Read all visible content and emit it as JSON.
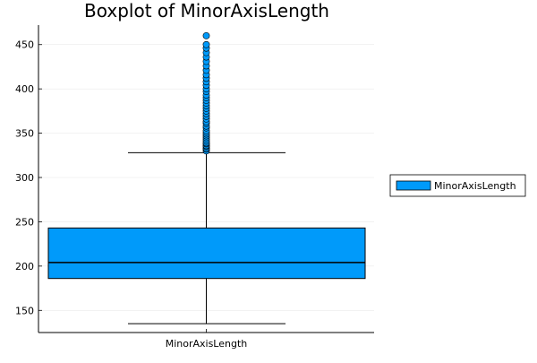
{
  "chart_data": {
    "type": "box",
    "title": "Boxplot of MinorAxisLength",
    "xlabel": "",
    "ylabel": "",
    "categories": [
      "MinorAxisLength"
    ],
    "ylim": [
      125,
      472
    ],
    "yticks": [
      150,
      200,
      250,
      300,
      350,
      400,
      450
    ],
    "grid": true,
    "legend": {
      "position": "right",
      "entries": [
        "MinorAxisLength"
      ]
    },
    "series": [
      {
        "name": "MinorAxisLength",
        "color": "#009AFA",
        "whisker_low": 135,
        "q1": 186,
        "median": 204,
        "q3": 243,
        "whisker_high": 328,
        "outliers": [
          330,
          332,
          333,
          335,
          336,
          338,
          339,
          341,
          343,
          345,
          347,
          349,
          351,
          353,
          356,
          358,
          361,
          363,
          366,
          369,
          372,
          375,
          378,
          381,
          384,
          387,
          390,
          393,
          397,
          400,
          404,
          408,
          412,
          416,
          421,
          426,
          431,
          436,
          441,
          446,
          450,
          460
        ]
      }
    ]
  }
}
